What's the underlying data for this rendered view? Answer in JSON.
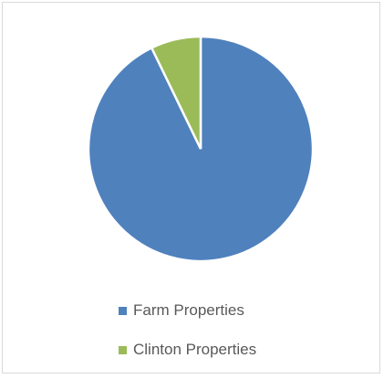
{
  "chart_data": {
    "type": "pie",
    "title": "",
    "series": [
      {
        "labels": [
          "Farm Properties",
          "Clinton Properties"
        ],
        "values": [
          92.8,
          7.2
        ],
        "colors": [
          "#4f81bd",
          "#9bbb59"
        ]
      }
    ],
    "legend": {
      "position": "bottom",
      "entries": [
        "Farm Properties",
        "Clinton Properties"
      ]
    }
  }
}
